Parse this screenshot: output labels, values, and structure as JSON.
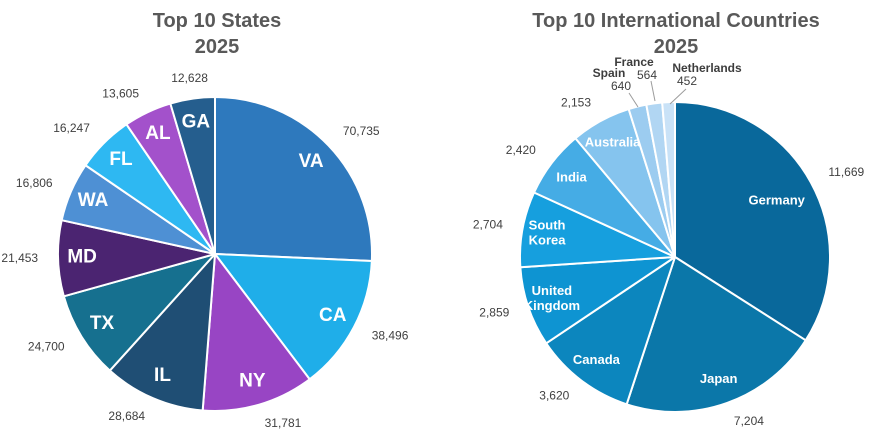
{
  "style": {
    "background": "#ffffff",
    "title_color": "#595959",
    "value_label_color": "#404040",
    "inside_label_color": "#ffffff",
    "leader_line_color": "#9c9c9c",
    "slice_border_color": "#ffffff"
  },
  "chart_data": [
    {
      "type": "pie",
      "title": "Top 10 States",
      "subtitle": "2025",
      "direction": "clockwise",
      "start_angle_deg": 0,
      "legend": "none",
      "label_style": "category inside, value outside",
      "slices": [
        {
          "label": "VA",
          "value": 70735,
          "value_label": "70,735",
          "color": "#2E79BD",
          "name_label": "inside"
        },
        {
          "label": "CA",
          "value": 38496,
          "value_label": "38,496",
          "color": "#1FAEE9",
          "name_label": "inside"
        },
        {
          "label": "NY",
          "value": 31781,
          "value_label": "31,781",
          "color": "#9845C4",
          "name_label": "inside"
        },
        {
          "label": "IL",
          "value": 28684,
          "value_label": "28,684",
          "color": "#1F4E74",
          "name_label": "inside"
        },
        {
          "label": "TX",
          "value": 24700,
          "value_label": "24,700",
          "color": "#16708F",
          "name_label": "inside"
        },
        {
          "label": "MD",
          "value": 21453,
          "value_label": "21,453",
          "color": "#4B2471",
          "name_label": "inside"
        },
        {
          "label": "WA",
          "value": 16806,
          "value_label": "16,806",
          "color": "#4E90D4",
          "name_label": "inside"
        },
        {
          "label": "FL",
          "value": 16247,
          "value_label": "16,247",
          "color": "#2EB8F2",
          "name_label": "inside"
        },
        {
          "label": "AL",
          "value": 13605,
          "value_label": "13,605",
          "color": "#A351CB",
          "name_label": "inside"
        },
        {
          "label": "GA",
          "value": 12628,
          "value_label": "12,628",
          "color": "#255E8E",
          "name_label": "inside"
        }
      ]
    },
    {
      "type": "pie",
      "title": "Top 10 International Countries",
      "subtitle": "2025",
      "direction": "clockwise",
      "start_angle_deg": 0,
      "legend": "none",
      "label_style": "category inside, value outside; smallest three use callout labels with leader lines",
      "slices": [
        {
          "label": "Germany",
          "value": 11669,
          "value_label": "11,669",
          "color": "#09689B",
          "name_label": "inside"
        },
        {
          "label": "Japan",
          "value": 7204,
          "value_label": "7,204",
          "color": "#0B77A9",
          "name_label": "inside"
        },
        {
          "label": "Canada",
          "value": 3620,
          "value_label": "3,620",
          "color": "#0C86BE",
          "name_label": "inside"
        },
        {
          "label": "United Kingdom",
          "value": 2859,
          "value_label": "2,859",
          "color": "#0E94D2",
          "name_label": "inside"
        },
        {
          "label": "South Korea",
          "value": 2704,
          "value_label": "2,704",
          "color": "#169FDE",
          "name_label": "inside"
        },
        {
          "label": "India",
          "value": 2420,
          "value_label": "2,420",
          "color": "#45ACE5",
          "name_label": "inside"
        },
        {
          "label": "Australia",
          "value": 2153,
          "value_label": "2,153",
          "color": "#85C4EE",
          "name_label": "inside"
        },
        {
          "label": "Spain",
          "value": 640,
          "value_label": "640",
          "color": "#9CCCF0",
          "name_label": "callout"
        },
        {
          "label": "France",
          "value": 564,
          "value_label": "564",
          "color": "#B1D6F3",
          "name_label": "callout"
        },
        {
          "label": "Netherlands",
          "value": 452,
          "value_label": "452",
          "color": "#C9E2F7",
          "name_label": "callout"
        }
      ]
    }
  ]
}
